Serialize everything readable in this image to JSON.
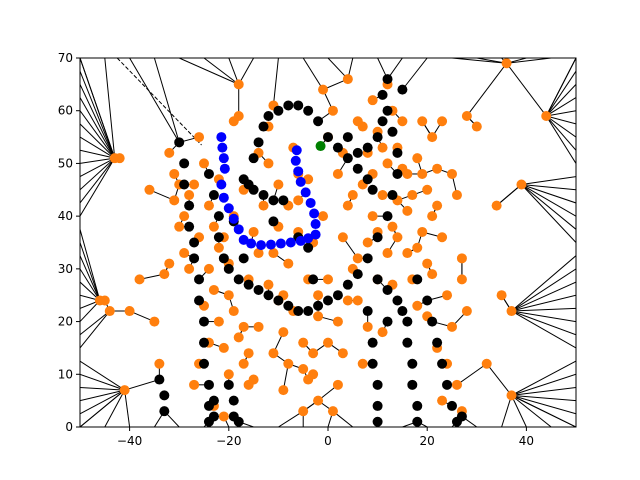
{
  "chart_data": {
    "type": "scatter",
    "title": "",
    "xlabel": "",
    "ylabel": "",
    "xlim": [
      -50,
      50
    ],
    "ylim": [
      0,
      70
    ],
    "xticks": [
      -40,
      -20,
      0,
      20,
      40
    ],
    "yticks": [
      0,
      10,
      20,
      30,
      40,
      50,
      60,
      70
    ],
    "xtick_labels": [
      "−40",
      "−20",
      "0",
      "20",
      "40"
    ],
    "ytick_labels": [
      "0",
      "10",
      "20",
      "30",
      "40",
      "50",
      "60",
      "70"
    ],
    "grid": false,
    "legend": false,
    "colors": {
      "orange": "#ff7f0e",
      "black": "#000000",
      "blue": "#0000ff",
      "green": "#008000",
      "edge": "#000000"
    },
    "dashed_edges": [
      {
        "from": [
          -42.5,
          70
        ],
        "to": [
          -25.5,
          53.5
        ]
      }
    ],
    "series": [
      {
        "color": "orange",
        "points": [
          [
            -46,
            24
          ],
          [
            -45,
            24
          ],
          [
            -44,
            22
          ],
          [
            -43,
            51
          ],
          [
            -42,
            51
          ],
          [
            -41,
            7
          ],
          [
            -40,
            22
          ],
          [
            -38,
            28
          ],
          [
            -36,
            45
          ],
          [
            -35,
            20
          ],
          [
            -34,
            12
          ],
          [
            -33,
            29
          ],
          [
            -32,
            52
          ],
          [
            -32,
            31
          ],
          [
            -31,
            43
          ],
          [
            -30,
            46
          ],
          [
            -29,
            40
          ],
          [
            -28,
            44
          ],
          [
            -27,
            46
          ],
          [
            -26,
            55
          ],
          [
            -25,
            50
          ],
          [
            -24,
            42
          ],
          [
            -24,
            30
          ],
          [
            -23,
            38
          ],
          [
            -23,
            26
          ],
          [
            -22,
            34
          ],
          [
            -22,
            20
          ],
          [
            -21,
            36
          ],
          [
            -21,
            15
          ],
          [
            -20,
            31
          ],
          [
            -20,
            10
          ],
          [
            -19,
            40
          ],
          [
            -19,
            58
          ],
          [
            -18,
            65
          ],
          [
            -18,
            59
          ],
          [
            -17,
            45
          ],
          [
            -17,
            19
          ],
          [
            -16,
            28
          ],
          [
            -16,
            14
          ],
          [
            -15,
            37
          ],
          [
            -15,
            9
          ],
          [
            -14,
            33
          ],
          [
            -14,
            19
          ],
          [
            -13,
            42
          ],
          [
            -12,
            27
          ],
          [
            -12,
            57
          ],
          [
            -12,
            50
          ],
          [
            -11,
            14
          ],
          [
            -11,
            33
          ],
          [
            -10,
            24
          ],
          [
            -10,
            46
          ],
          [
            -9,
            18
          ],
          [
            -9,
            7
          ],
          [
            -8,
            31
          ],
          [
            -8,
            12
          ],
          [
            -7,
            53
          ],
          [
            -7,
            22
          ],
          [
            -6,
            43
          ],
          [
            -5,
            3
          ],
          [
            -5,
            16
          ],
          [
            -4,
            9
          ],
          [
            -4,
            28
          ],
          [
            -3,
            35
          ],
          [
            -3,
            14
          ],
          [
            -2,
            21
          ],
          [
            -2,
            5
          ],
          [
            -1,
            64
          ],
          [
            -1,
            40
          ],
          [
            0,
            28
          ],
          [
            1,
            3
          ],
          [
            1,
            60
          ],
          [
            2,
            48
          ],
          [
            2,
            20
          ],
          [
            3,
            14
          ],
          [
            3,
            36
          ],
          [
            4,
            66
          ],
          [
            4,
            42
          ],
          [
            5,
            30
          ],
          [
            6,
            58
          ],
          [
            6,
            24
          ],
          [
            7,
            46
          ],
          [
            7,
            12
          ],
          [
            8,
            52
          ],
          [
            8,
            35
          ],
          [
            9,
            62
          ],
          [
            9,
            40
          ],
          [
            10,
            56
          ],
          [
            10,
            28
          ],
          [
            11,
            44
          ],
          [
            11,
            18
          ],
          [
            12,
            50
          ],
          [
            12,
            65
          ],
          [
            13,
            38
          ],
          [
            13,
            27
          ],
          [
            14,
            43
          ],
          [
            14,
            53
          ],
          [
            15,
            58
          ],
          [
            16,
            48
          ],
          [
            16,
            33
          ],
          [
            17,
            44
          ],
          [
            18,
            51
          ],
          [
            18,
            23
          ],
          [
            19,
            37
          ],
          [
            19,
            58
          ],
          [
            20,
            45
          ],
          [
            20,
            21
          ],
          [
            21,
            55
          ],
          [
            21,
            29
          ],
          [
            22,
            15
          ],
          [
            22,
            42
          ],
          [
            23,
            58
          ],
          [
            23,
            5
          ],
          [
            24,
            25
          ],
          [
            24,
            12
          ],
          [
            25,
            19
          ],
          [
            26,
            44
          ],
          [
            26,
            8
          ],
          [
            27,
            32
          ],
          [
            27,
            3
          ],
          [
            28,
            59
          ],
          [
            28,
            22
          ],
          [
            30,
            57
          ],
          [
            32,
            12
          ],
          [
            34,
            42
          ],
          [
            35,
            25
          ],
          [
            36,
            69
          ],
          [
            37,
            22
          ],
          [
            37,
            6
          ],
          [
            39,
            46
          ],
          [
            44,
            59
          ],
          [
            -25,
            23
          ],
          [
            -24,
            16
          ],
          [
            -26,
            12
          ],
          [
            -27,
            8
          ],
          [
            -23,
            4
          ],
          [
            -21,
            2
          ],
          [
            -20,
            25
          ],
          [
            -19,
            22
          ],
          [
            -18,
            17
          ],
          [
            -17,
            12
          ],
          [
            -16,
            8
          ],
          [
            -9,
            25
          ],
          [
            -8,
            42
          ],
          [
            -6,
            48
          ],
          [
            -5,
            11
          ],
          [
            -3,
            10
          ],
          [
            -2,
            25
          ],
          [
            0,
            16
          ],
          [
            2,
            8
          ],
          [
            4,
            24
          ],
          [
            6,
            32
          ],
          [
            8,
            19
          ],
          [
            10,
            37
          ],
          [
            12,
            33
          ],
          [
            14,
            36
          ],
          [
            17,
            28
          ],
          [
            19,
            48
          ],
          [
            21,
            40
          ],
          [
            23,
            36
          ],
          [
            25,
            48
          ],
          [
            27,
            28
          ],
          [
            -30,
            38
          ],
          [
            -28,
            30
          ],
          [
            -26,
            36
          ],
          [
            -29,
            33
          ],
          [
            -31,
            48
          ],
          [
            -22,
            47
          ],
          [
            -14,
            52
          ],
          [
            -11,
            61
          ],
          [
            -10,
            38
          ],
          [
            -6,
            37
          ],
          [
            -4,
            47
          ],
          [
            0,
            55
          ],
          [
            3,
            52
          ],
          [
            5,
            44
          ],
          [
            7,
            57
          ],
          [
            9,
            48
          ],
          [
            11,
            53
          ],
          [
            13,
            60
          ],
          [
            15,
            49
          ],
          [
            16,
            41
          ],
          [
            18,
            34
          ],
          [
            20,
            31
          ],
          [
            22,
            49
          ]
        ]
      },
      {
        "color": "black",
        "points": [
          [
            -30,
            54
          ],
          [
            -29,
            50
          ],
          [
            -29,
            46
          ],
          [
            -28,
            42
          ],
          [
            -28,
            38
          ],
          [
            -27,
            35
          ],
          [
            -27,
            32
          ],
          [
            -26,
            28
          ],
          [
            -26,
            24
          ],
          [
            -25,
            20
          ],
          [
            -25,
            16
          ],
          [
            -25,
            12
          ],
          [
            -24,
            8
          ],
          [
            -24,
            4
          ],
          [
            -24,
            1
          ],
          [
            -23,
            5
          ],
          [
            -23,
            2
          ],
          [
            -22,
            40
          ],
          [
            -22,
            36
          ],
          [
            -21,
            32
          ],
          [
            -20,
            30
          ],
          [
            -18,
            28
          ],
          [
            -16,
            27
          ],
          [
            -14,
            26
          ],
          [
            -12,
            25
          ],
          [
            -10,
            24
          ],
          [
            -8,
            23
          ],
          [
            -6,
            22
          ],
          [
            -4,
            22
          ],
          [
            -2,
            23
          ],
          [
            0,
            24
          ],
          [
            2,
            25
          ],
          [
            4,
            27
          ],
          [
            6,
            29
          ],
          [
            8,
            32
          ],
          [
            10,
            36
          ],
          [
            12,
            40
          ],
          [
            13,
            44
          ],
          [
            14,
            48
          ],
          [
            14,
            52
          ],
          [
            13,
            56
          ],
          [
            12,
            60
          ],
          [
            11,
            63
          ],
          [
            -15,
            51
          ],
          [
            -14,
            54
          ],
          [
            -13,
            57
          ],
          [
            -12,
            59
          ],
          [
            -10,
            60
          ],
          [
            -8,
            61
          ],
          [
            -6,
            61
          ],
          [
            -4,
            60
          ],
          [
            -2,
            58
          ],
          [
            0,
            55
          ],
          [
            2,
            53
          ],
          [
            4,
            51
          ],
          [
            6,
            49
          ],
          [
            8,
            47
          ],
          [
            9,
            45
          ],
          [
            -17,
            47
          ],
          [
            -16,
            46
          ],
          [
            -15,
            45
          ],
          [
            -13,
            44
          ],
          [
            -11,
            43
          ],
          [
            -9,
            43
          ],
          [
            -34,
            9
          ],
          [
            -33,
            6
          ],
          [
            -33,
            3
          ],
          [
            -20,
            8
          ],
          [
            -19,
            5
          ],
          [
            -19,
            2
          ],
          [
            -18,
            1
          ],
          [
            10,
            28
          ],
          [
            12,
            26
          ],
          [
            14,
            24
          ],
          [
            15,
            22
          ],
          [
            16,
            20
          ],
          [
            16,
            16
          ],
          [
            17,
            12
          ],
          [
            17,
            8
          ],
          [
            18,
            4
          ],
          [
            18,
            1
          ],
          [
            9,
            16
          ],
          [
            9,
            12
          ],
          [
            10,
            8
          ],
          [
            10,
            4
          ],
          [
            10,
            1
          ],
          [
            20,
            24
          ],
          [
            21,
            20
          ],
          [
            22,
            16
          ],
          [
            23,
            12
          ],
          [
            24,
            8
          ],
          [
            25,
            4
          ],
          [
            26,
            1
          ],
          [
            27,
            2
          ],
          [
            8,
            22
          ],
          [
            12,
            20
          ],
          [
            18,
            28
          ],
          [
            -6,
            36
          ],
          [
            -4,
            34
          ],
          [
            -3,
            28
          ],
          [
            -11,
            39
          ],
          [
            -19,
            39
          ],
          [
            -17,
            32
          ],
          [
            -23,
            44
          ],
          [
            -24,
            48
          ],
          [
            12,
            66
          ],
          [
            11,
            58
          ],
          [
            10,
            55
          ],
          [
            8,
            53
          ],
          [
            6,
            52
          ],
          [
            4,
            55
          ],
          [
            15,
            64
          ]
        ]
      },
      {
        "color": "blue",
        "points": [
          [
            -21.5,
            55
          ],
          [
            -21.3,
            53
          ],
          [
            -21,
            51
          ],
          [
            -20.8,
            49
          ],
          [
            -21.5,
            46
          ],
          [
            -21,
            43.5
          ],
          [
            -20,
            41.5
          ],
          [
            -19,
            39.5
          ],
          [
            -18,
            37.5
          ],
          [
            -17,
            35.5
          ],
          [
            -15.5,
            34.8
          ],
          [
            -13.5,
            34.5
          ],
          [
            -11.5,
            34.6
          ],
          [
            -9.5,
            34.8
          ],
          [
            -7.5,
            35
          ],
          [
            -5.5,
            35.3
          ],
          [
            -4,
            35.8
          ],
          [
            -2.5,
            36.5
          ],
          [
            -2.5,
            38.5
          ],
          [
            -2.8,
            40.5
          ],
          [
            -3.5,
            42.5
          ],
          [
            -4.5,
            44.5
          ],
          [
            -5.5,
            46.5
          ],
          [
            -6,
            48.5
          ],
          [
            -6.5,
            50.5
          ],
          [
            -6.3,
            52.5
          ]
        ]
      },
      {
        "color": "green",
        "points": [
          [
            -1.5,
            53.3
          ]
        ]
      }
    ]
  }
}
